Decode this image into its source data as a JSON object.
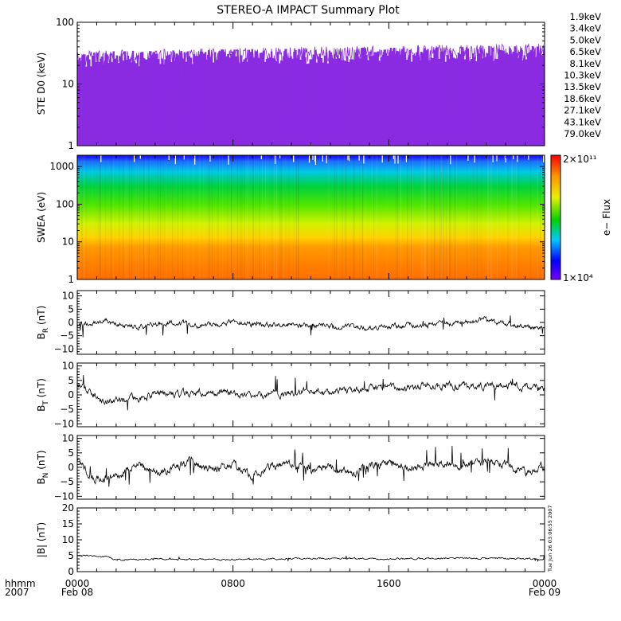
{
  "chart_data": {
    "type": "multi-panel time series",
    "title": "STEREO-A IMPACT Summary Plot",
    "x_axis": {
      "range_hours": [
        0,
        24
      ],
      "ticks": [
        {
          "hour": 0,
          "label": "0000",
          "date": "Feb 08"
        },
        {
          "hour": 8,
          "label": "0800",
          "date": ""
        },
        {
          "hour": 16,
          "label": "1600",
          "date": ""
        },
        {
          "hour": 24,
          "label": "0000",
          "date": "Feb 09"
        }
      ],
      "corner_label_top": "hhmm",
      "corner_label_bottom": "2007"
    },
    "timestamp": "Tue Jun 26 03:06:55 2007",
    "panels": [
      {
        "id": "ste",
        "ylabel": "STE D0 (keV)",
        "yscale": "log",
        "ylim": [
          1,
          100
        ],
        "yticks": [
          {
            "v": 1,
            "label": "1"
          },
          {
            "v": 10,
            "label": "10"
          },
          {
            "v": 100,
            "label": "100"
          }
        ],
        "legend_placement": "right",
        "legend": [
          {
            "name": "1.9keV",
            "color": "#8a2be2",
            "level": 25,
            "spread": 9
          },
          {
            "name": "3.4keV",
            "color": "#1e1ec8",
            "level": 3.3,
            "spread": 0.7
          },
          {
            "name": "5.0keV",
            "color": "#1464ff",
            "level": 3.0,
            "spread": 0.7
          },
          {
            "name": "6.5keV",
            "color": "#00a0ff",
            "level": 2.8,
            "spread": 0.6
          },
          {
            "name": "8.1keV",
            "color": "#00d2c8",
            "level": 2.6,
            "spread": 0.5
          },
          {
            "name": "10.3keV",
            "color": "#00c800",
            "level": 2.4,
            "spread": 0.45
          },
          {
            "name": "13.5keV",
            "color": "#32d200",
            "level": 2.2,
            "spread": 0.4
          },
          {
            "name": "18.6keV",
            "color": "#a0e600",
            "level": 2.0,
            "spread": 0.35
          },
          {
            "name": "27.1keV",
            "color": "#e6e600",
            "level": 1.8,
            "spread": 0.3
          },
          {
            "name": "43.1keV",
            "color": "#ff9600",
            "level": 1.6,
            "spread": 0.25
          },
          {
            "name": "79.0keV",
            "color": "#ff2800",
            "level": 1.4,
            "spread": 0.2
          }
        ]
      },
      {
        "id": "swea",
        "ylabel": "SWEA (eV)",
        "yscale": "log",
        "ylim": [
          1,
          2000
        ],
        "yticks": [
          {
            "v": 1,
            "label": "1"
          },
          {
            "v": 10,
            "label": "10"
          },
          {
            "v": 100,
            "label": "100"
          },
          {
            "v": 1000,
            "label": "1000"
          }
        ],
        "type": "spectrogram",
        "colorbar": {
          "label": "e− Flux",
          "max_label": "2×10¹¹",
          "min_label": "1×10⁴",
          "scale": "log"
        }
      },
      {
        "id": "br",
        "ylabel_main": "B",
        "ylabel_sub": "R",
        "ylabel_unit": " (nT)",
        "ylim": [
          -12,
          12
        ],
        "yticks": [
          {
            "v": -10,
            "label": "−10"
          },
          {
            "v": -5,
            "label": "−5"
          },
          {
            "v": 0,
            "label": "0"
          },
          {
            "v": 5,
            "label": "5"
          },
          {
            "v": 10,
            "label": "10"
          }
        ],
        "series_profile": [
          [
            0,
            -1.0
          ],
          [
            1.5,
            0.5
          ],
          [
            3,
            -1.5
          ],
          [
            4,
            -0.5
          ],
          [
            5,
            0.2
          ],
          [
            6,
            -1.5
          ],
          [
            7,
            -0.8
          ],
          [
            8,
            0.5
          ],
          [
            9,
            -0.5
          ],
          [
            10,
            -1.0
          ],
          [
            12,
            -1.2
          ],
          [
            14,
            -1.8
          ],
          [
            15,
            -2.0
          ],
          [
            16,
            -1.5
          ],
          [
            17,
            -1.0
          ],
          [
            18,
            -0.8
          ],
          [
            19,
            -0.5
          ],
          [
            20,
            0.0
          ],
          [
            21,
            1.0
          ],
          [
            22,
            -0.5
          ],
          [
            23,
            -1.5
          ],
          [
            24,
            -2.5
          ]
        ]
      },
      {
        "id": "bt",
        "ylabel_main": "B",
        "ylabel_sub": "T",
        "ylabel_unit": " (nT)",
        "ylim": [
          -11,
          11
        ],
        "yticks": [
          {
            "v": -10,
            "label": "−10"
          },
          {
            "v": -5,
            "label": "−5"
          },
          {
            "v": 0,
            "label": "0"
          },
          {
            "v": 5,
            "label": "5"
          },
          {
            "v": 10,
            "label": "10"
          }
        ],
        "series_profile": [
          [
            0,
            3.5
          ],
          [
            0.7,
            1.0
          ],
          [
            1.5,
            -2.0
          ],
          [
            3,
            -1.0
          ],
          [
            4,
            0.0
          ],
          [
            6,
            0.5
          ],
          [
            7,
            1.5
          ],
          [
            8,
            0.5
          ],
          [
            9,
            -1.0
          ],
          [
            10,
            0.5
          ],
          [
            11,
            0.0
          ],
          [
            12,
            1.5
          ],
          [
            13,
            0.5
          ],
          [
            14,
            1.5
          ],
          [
            15,
            2.0
          ],
          [
            17,
            2.5
          ],
          [
            19,
            3.0
          ],
          [
            21,
            3.0
          ],
          [
            22.5,
            3.5
          ],
          [
            24,
            2.0
          ]
        ]
      },
      {
        "id": "bn",
        "ylabel_main": "B",
        "ylabel_sub": "N",
        "ylabel_unit": " (nT)",
        "ylim": [
          -11,
          11
        ],
        "yticks": [
          {
            "v": -10,
            "label": "−10"
          },
          {
            "v": -5,
            "label": "−5"
          },
          {
            "v": 0,
            "label": "0"
          },
          {
            "v": 5,
            "label": "5"
          },
          {
            "v": 10,
            "label": "10"
          }
        ],
        "series_profile": [
          [
            0,
            2.0
          ],
          [
            0.8,
            -4.0
          ],
          [
            2,
            -3.0
          ],
          [
            3,
            1.0
          ],
          [
            4,
            -2.0
          ],
          [
            5,
            0.0
          ],
          [
            6,
            2.0
          ],
          [
            7,
            -1.0
          ],
          [
            8,
            1.0
          ],
          [
            9,
            -3.0
          ],
          [
            10,
            0.0
          ],
          [
            11,
            1.5
          ],
          [
            12,
            -1.0
          ],
          [
            13,
            0.0
          ],
          [
            14,
            -2.0
          ],
          [
            15,
            0.5
          ],
          [
            16,
            1.5
          ],
          [
            17,
            -0.5
          ],
          [
            18,
            1.0
          ],
          [
            19,
            1.5
          ],
          [
            20,
            0.5
          ],
          [
            21,
            2.0
          ],
          [
            22,
            1.0
          ],
          [
            23,
            -2.0
          ],
          [
            24,
            0.5
          ]
        ]
      },
      {
        "id": "b",
        "ylabel": "|B| (nT)",
        "ylim": [
          0,
          20
        ],
        "yticks": [
          {
            "v": 0,
            "label": "0"
          },
          {
            "v": 5,
            "label": "5"
          },
          {
            "v": 10,
            "label": "10"
          },
          {
            "v": 15,
            "label": "15"
          },
          {
            "v": 20,
            "label": "20"
          }
        ],
        "series_profile": [
          [
            0,
            5.2
          ],
          [
            1.5,
            4.6
          ],
          [
            2,
            3.7
          ],
          [
            4,
            3.9
          ],
          [
            8,
            3.8
          ],
          [
            12,
            4.1
          ],
          [
            16,
            4.0
          ],
          [
            20,
            4.3
          ],
          [
            24,
            3.9
          ]
        ]
      }
    ]
  }
}
